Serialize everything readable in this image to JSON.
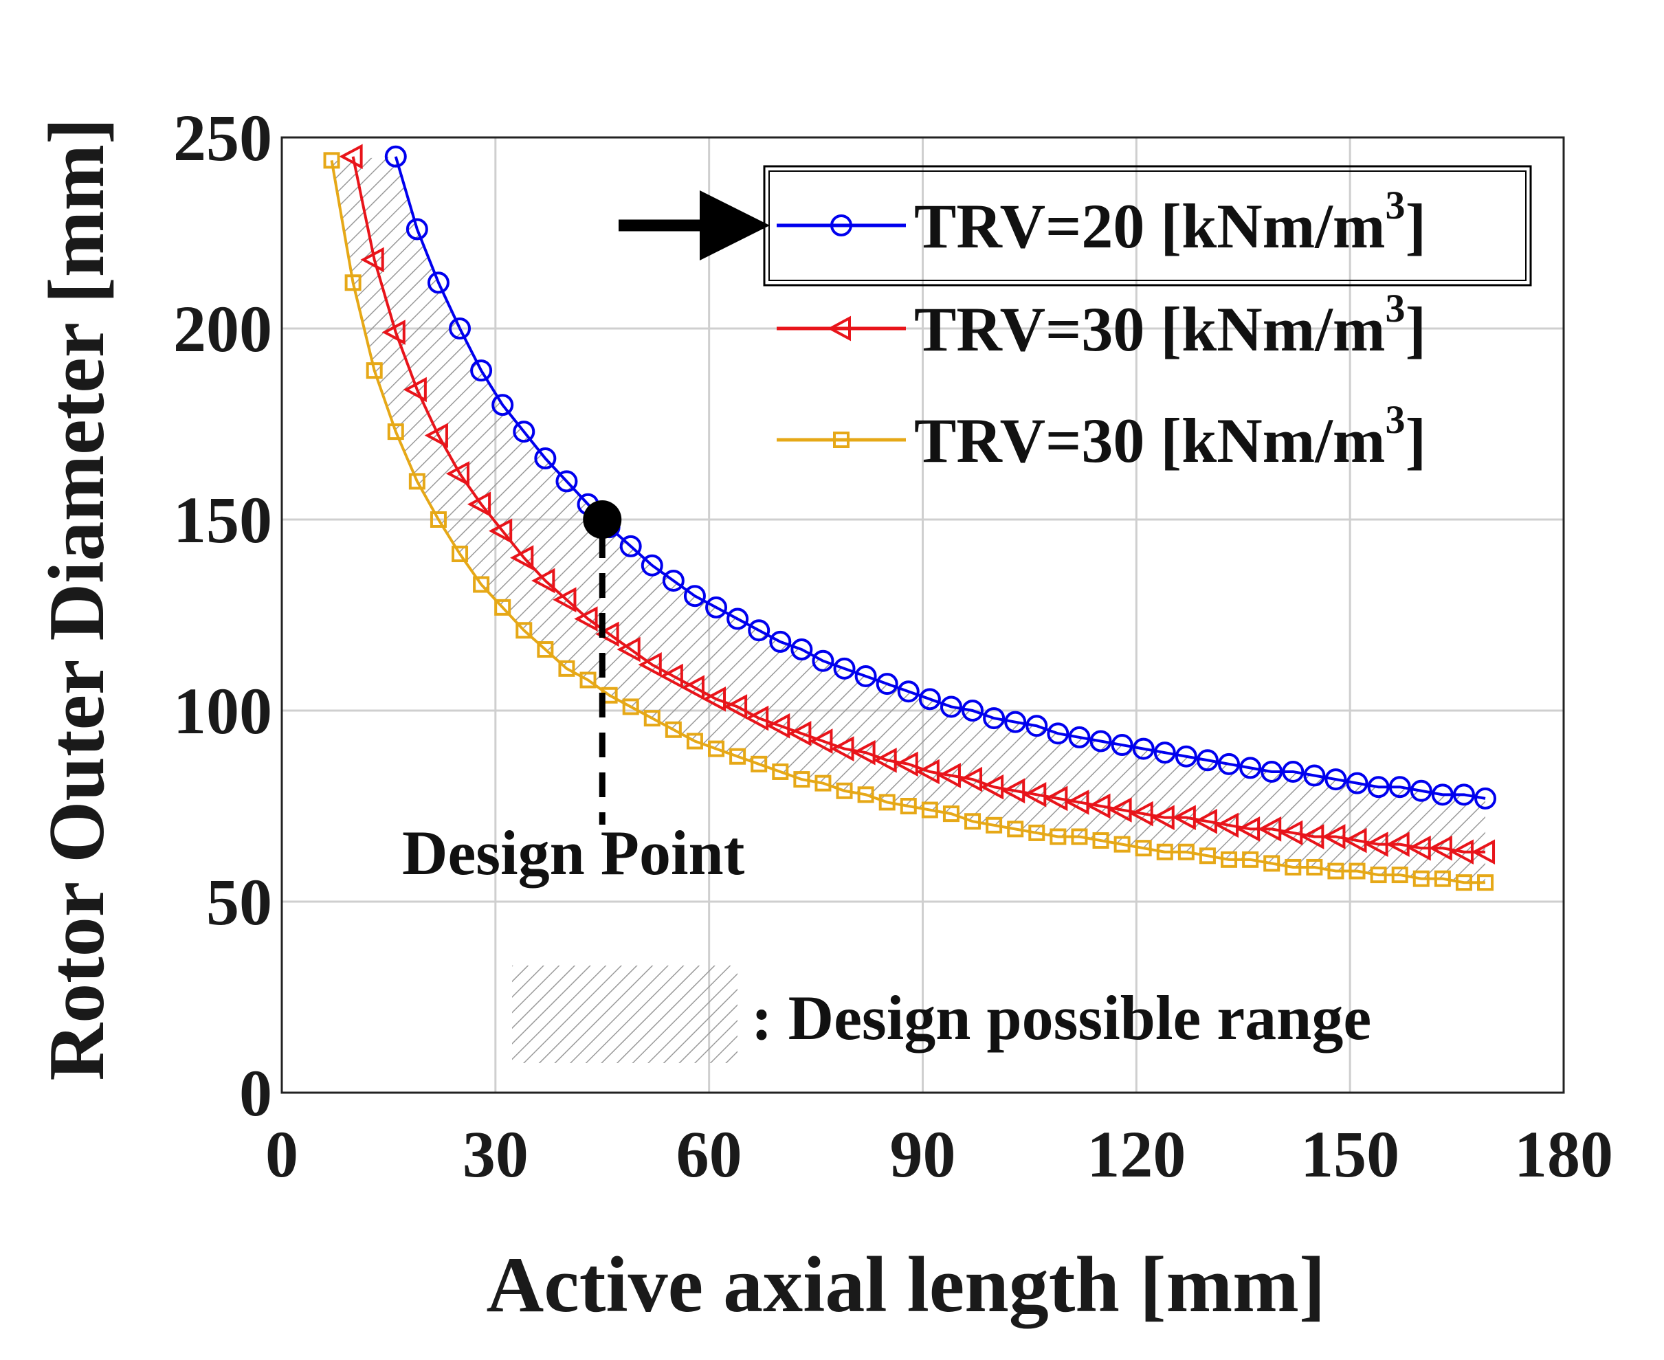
{
  "chart_data": {
    "type": "line",
    "xlabel": "Active axial length [mm]",
    "ylabel": "Rotor Outer Diameter [mm]",
    "xlim": [
      0,
      180
    ],
    "ylim": [
      0,
      250
    ],
    "xticks": [
      "0",
      "30",
      "60",
      "90",
      "120",
      "150",
      "180"
    ],
    "yticks": [
      "0",
      "50",
      "100",
      "150",
      "200",
      "250"
    ],
    "grid": true,
    "legend_position": "top-right",
    "series": [
      {
        "name": "TRV=20 [kNm/m",
        "sup": "3",
        "name_end": "]",
        "color": "#0000ee",
        "marker": "circle",
        "x": [
          16,
          19,
          22,
          25,
          28,
          31,
          34,
          37,
          40,
          43,
          46,
          49,
          52,
          55,
          58,
          61,
          64,
          67,
          70,
          73,
          76,
          79,
          82,
          85,
          88,
          91,
          94,
          97,
          100,
          103,
          106,
          109,
          112,
          115,
          118,
          121,
          124,
          127,
          130,
          133,
          136,
          139,
          142,
          145,
          148,
          151,
          154,
          157,
          160,
          163,
          166,
          169
        ],
        "y": [
          245,
          226,
          212,
          200,
          189,
          180,
          173,
          166,
          160,
          154,
          148,
          143,
          138,
          134,
          130,
          127,
          124,
          121,
          118,
          116,
          113,
          111,
          109,
          107,
          105,
          103,
          101,
          100,
          98,
          97,
          96,
          94,
          93,
          92,
          91,
          90,
          89,
          88,
          87,
          86,
          85,
          84,
          84,
          83,
          82,
          81,
          80,
          80,
          79,
          78,
          78,
          77
        ]
      },
      {
        "name": "TRV=30 [kNm/m",
        "sup": "3",
        "name_end": "]",
        "color": "#e8141a",
        "marker": "triangle-left",
        "x": [
          10,
          13,
          16,
          19,
          22,
          25,
          28,
          31,
          34,
          37,
          40,
          43,
          46,
          49,
          52,
          55,
          58,
          61,
          64,
          67,
          70,
          73,
          76,
          79,
          82,
          85,
          88,
          91,
          94,
          97,
          100,
          103,
          106,
          109,
          112,
          115,
          118,
          121,
          124,
          127,
          130,
          133,
          136,
          139,
          142,
          145,
          148,
          151,
          154,
          157,
          160,
          163,
          166,
          169
        ],
        "y": [
          245,
          218,
          199,
          184,
          172,
          162,
          154,
          147,
          140,
          134,
          129,
          124,
          120,
          116,
          112,
          109,
          106,
          103,
          101,
          98,
          96,
          94,
          92,
          90,
          89,
          87,
          86,
          84,
          83,
          82,
          80,
          79,
          78,
          77,
          76,
          75,
          74,
          73,
          72,
          72,
          71,
          70,
          69,
          69,
          68,
          67,
          67,
          66,
          65,
          65,
          64,
          64,
          63,
          63
        ]
      },
      {
        "name": "TRV=30 [kNm/m",
        "sup": "3",
        "name_end": "]",
        "color": "#e6a817",
        "marker": "square",
        "x": [
          7,
          10,
          13,
          16,
          19,
          22,
          25,
          28,
          31,
          34,
          37,
          40,
          43,
          46,
          49,
          52,
          55,
          58,
          61,
          64,
          67,
          70,
          73,
          76,
          79,
          82,
          85,
          88,
          91,
          94,
          97,
          100,
          103,
          106,
          109,
          112,
          115,
          118,
          121,
          124,
          127,
          130,
          133,
          136,
          139,
          142,
          145,
          148,
          151,
          154,
          157,
          160,
          163,
          166,
          169
        ],
        "y": [
          244,
          212,
          189,
          173,
          160,
          150,
          141,
          133,
          127,
          121,
          116,
          111,
          108,
          104,
          101,
          98,
          95,
          92,
          90,
          88,
          86,
          84,
          82,
          81,
          79,
          78,
          76,
          75,
          74,
          73,
          71,
          70,
          69,
          68,
          67,
          67,
          66,
          65,
          64,
          63,
          63,
          62,
          61,
          61,
          60,
          59,
          59,
          58,
          58,
          57,
          57,
          56,
          56,
          55,
          55
        ]
      }
    ],
    "design_point": {
      "x": 45,
      "y": 150,
      "label": "Design Point"
    },
    "shade_legend": ": Design possible range"
  }
}
